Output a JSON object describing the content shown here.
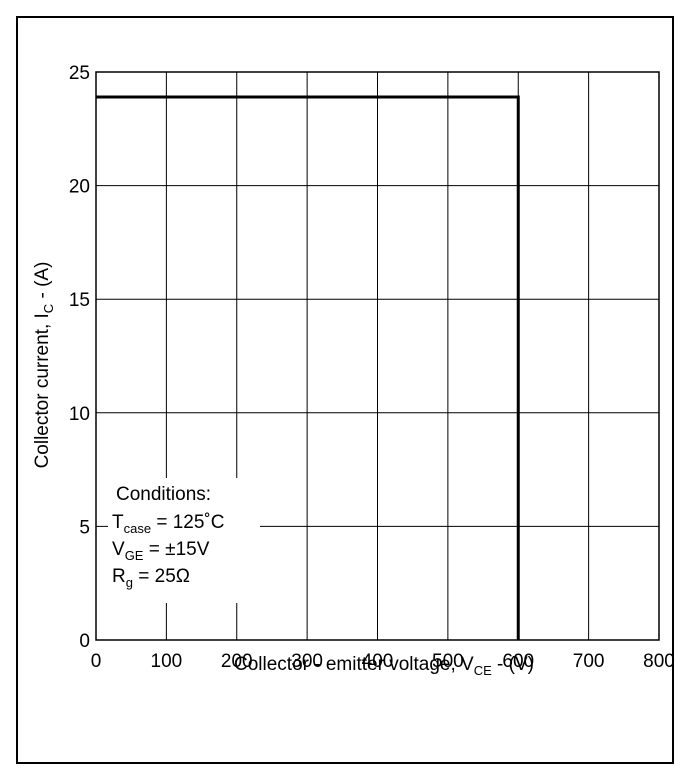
{
  "chart_data": {
    "type": "line",
    "title": "",
    "xlabel": {
      "main": "Collector - emitter voltage, V",
      "sub": "CE",
      "tail": " - (V)"
    },
    "ylabel": {
      "main": "Collector current, I",
      "sub": "C",
      "tail": " - (A)"
    },
    "xlim": [
      0,
      800
    ],
    "ylim": [
      0,
      25
    ],
    "x_ticks": [
      0,
      100,
      200,
      300,
      400,
      500,
      600,
      700,
      800
    ],
    "y_ticks": [
      0,
      5,
      10,
      15,
      20,
      25
    ],
    "grid": true,
    "series": [
      {
        "x": [
          0,
          600,
          600
        ],
        "y": [
          23.9,
          23.9,
          0
        ]
      }
    ],
    "annotation": {
      "heading": "Conditions:",
      "lines": [
        {
          "main": "T",
          "sub": "case",
          "tail": " = 125˚C"
        },
        {
          "main": "V",
          "sub": "GE",
          "tail": " = ±15V"
        },
        {
          "main": "R",
          "sub": "g",
          "tail": " = 25Ω"
        }
      ]
    },
    "colors": {
      "line": "#000000",
      "grid": "#000000",
      "background": "#ffffff"
    }
  }
}
